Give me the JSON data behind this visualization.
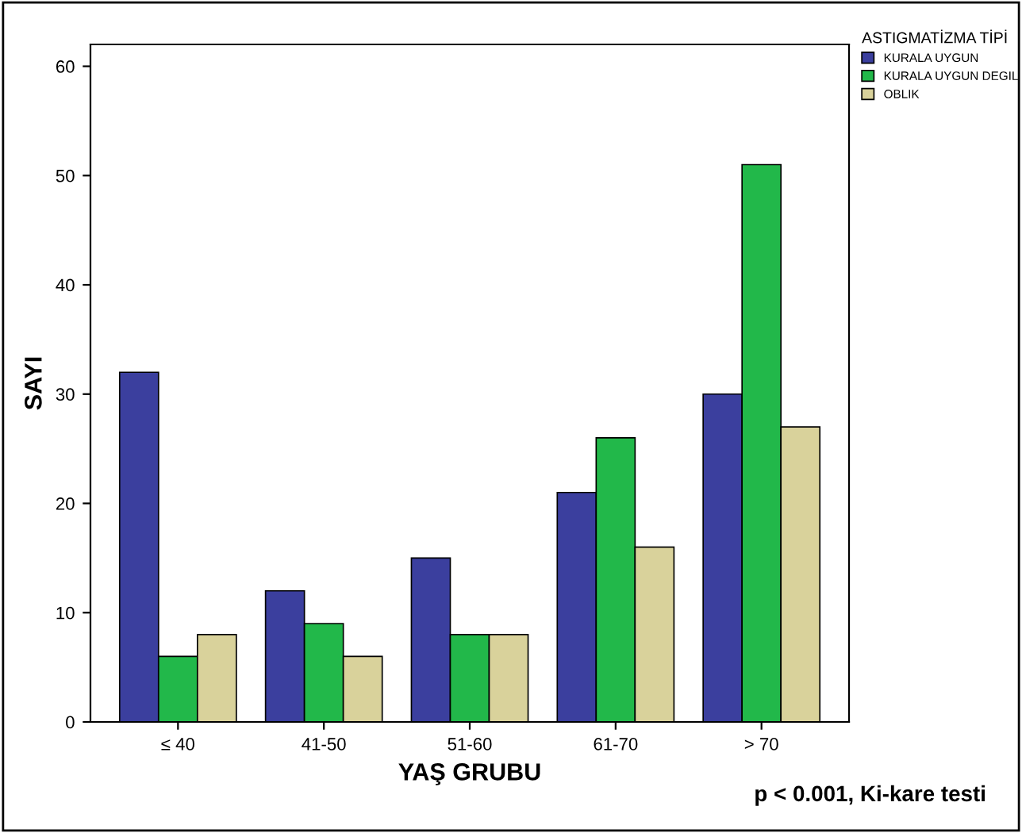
{
  "chart_data": {
    "type": "bar",
    "xlabel": "YAŞ GRUBU",
    "ylabel": "SAYI",
    "legend_title": "ASTIGMATİZMA TİPİ",
    "categories": [
      "≤ 40",
      "41-50",
      "51-60",
      "61-70",
      "> 70"
    ],
    "series": [
      {
        "name": "KURALA UYGUN",
        "color": "#3b3f9e",
        "values": [
          32,
          12,
          15,
          21,
          30
        ]
      },
      {
        "name": "KURALA UYGUN DEGIL",
        "color": "#22b84a",
        "values": [
          6,
          9,
          8,
          26,
          51
        ]
      },
      {
        "name": "OBLIK",
        "color": "#d9d29b",
        "values": [
          8,
          6,
          8,
          16,
          27
        ]
      }
    ],
    "ylim": [
      0,
      62
    ],
    "yticks": [
      0,
      10,
      20,
      30,
      40,
      50,
      60
    ],
    "grid": false,
    "legend": "top right",
    "annotations": [
      "p < 0.001, Ki-kare testi"
    ]
  }
}
